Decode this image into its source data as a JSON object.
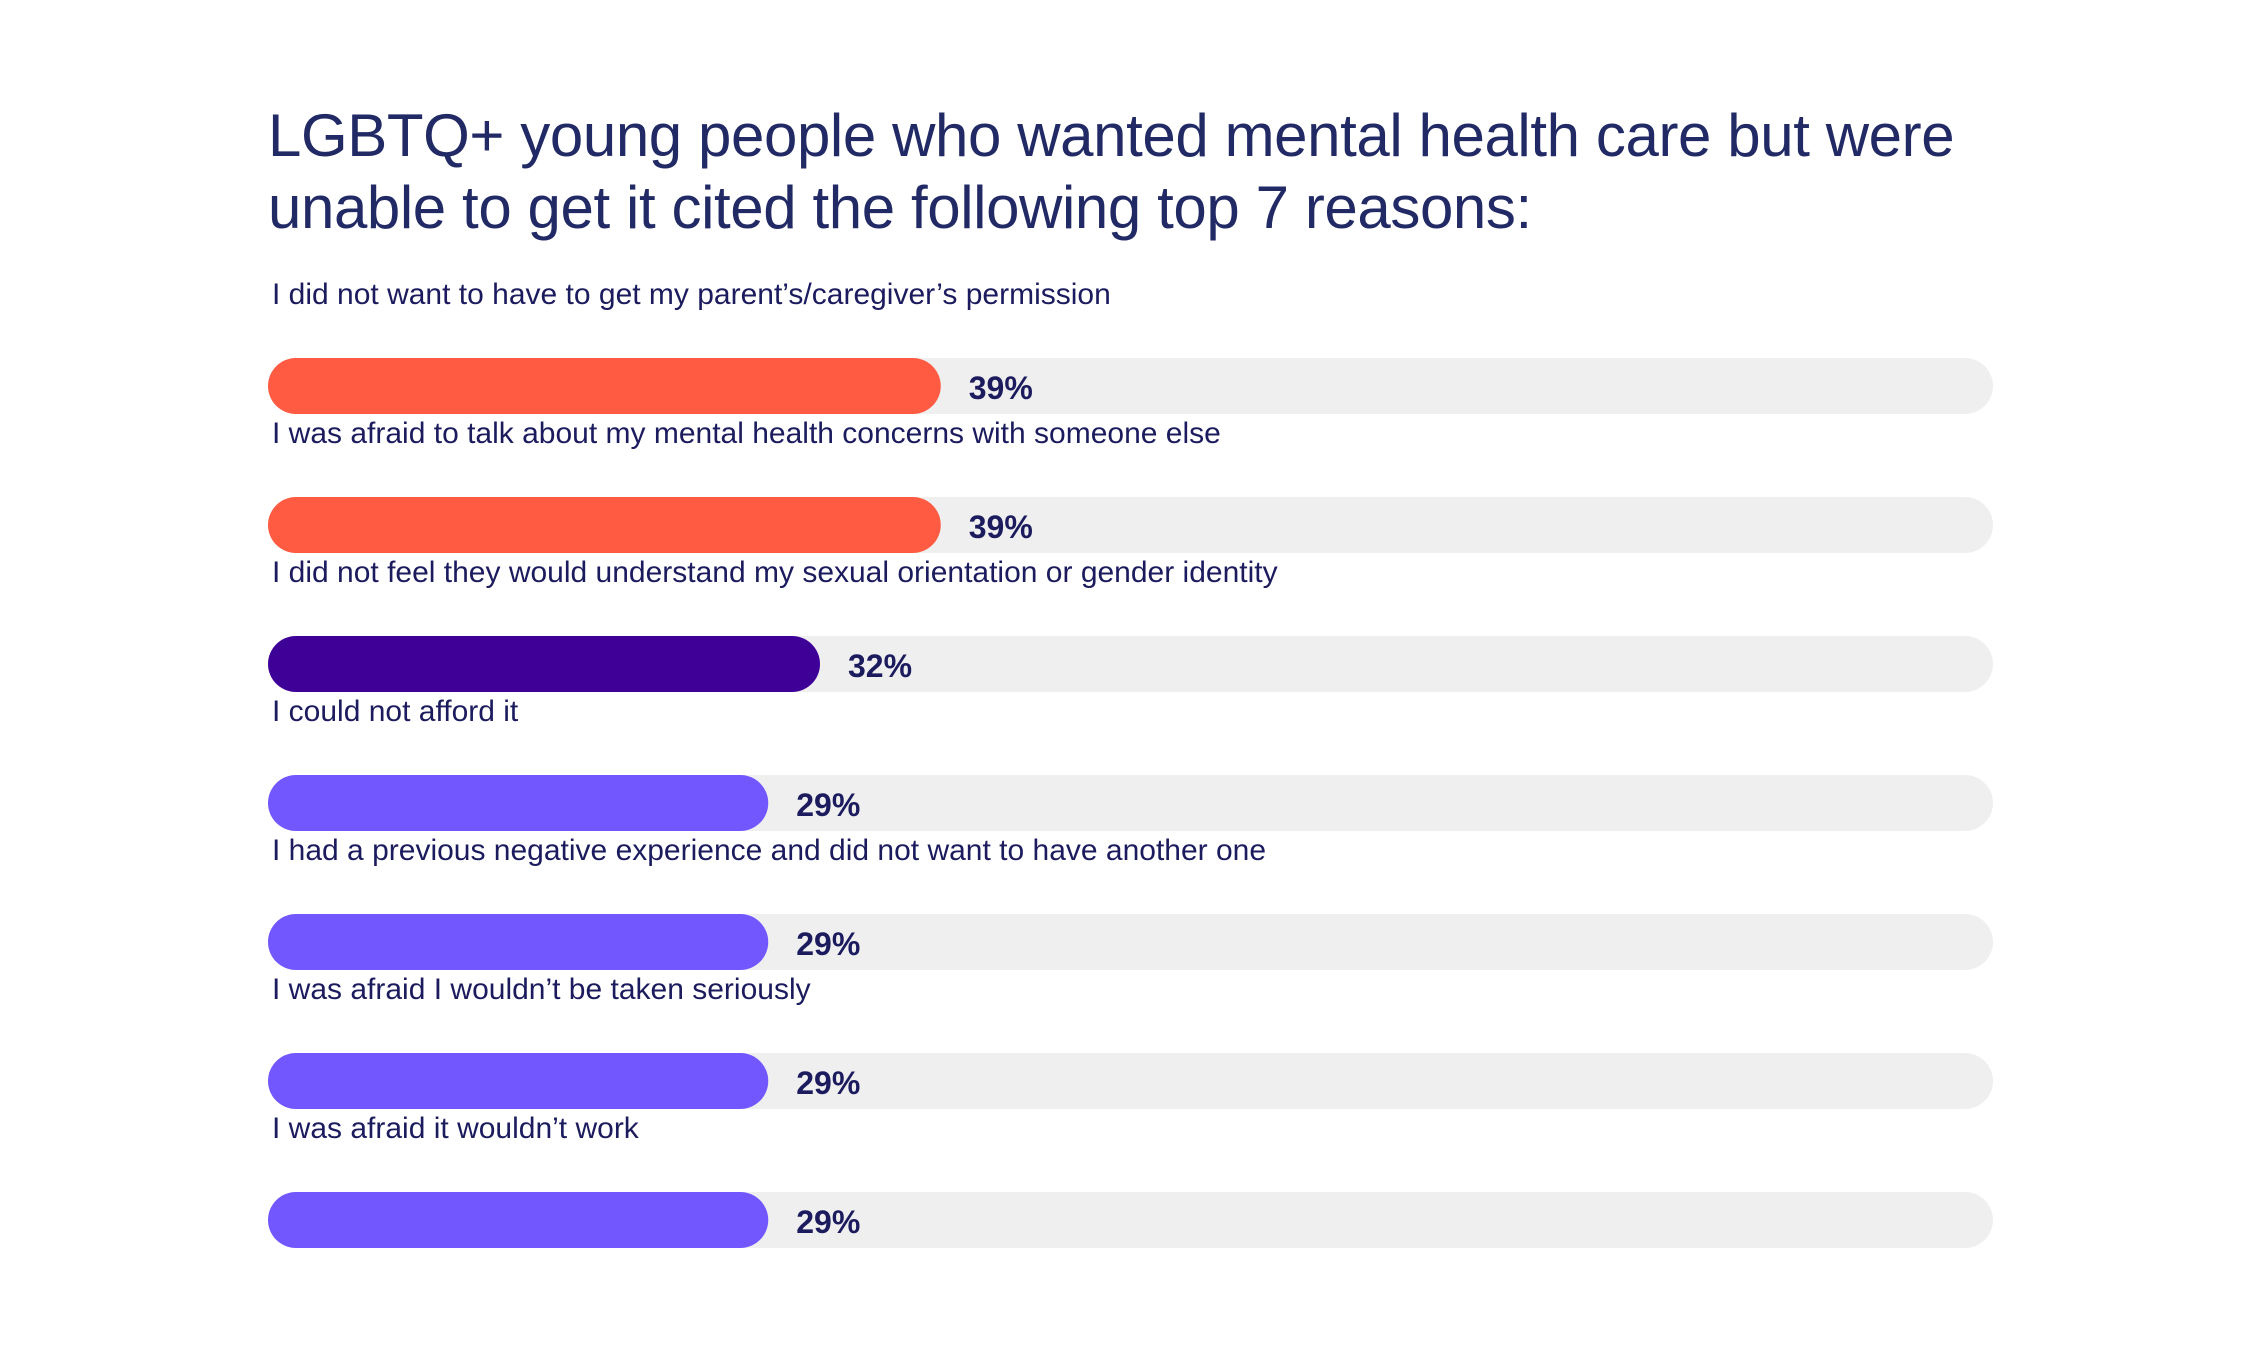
{
  "chart_data": {
    "type": "bar",
    "orientation": "horizontal",
    "title_lines": [
      "LGBTQ+ young people who wanted mental health care but were",
      "unable to get it cited the following top 7 reasons:"
    ],
    "categories": [
      "I did not want to have to get my parent’s/caregiver’s permission",
      "I was afraid to talk about my mental health concerns with someone else",
      "I did not feel they would understand my sexual orientation or gender identity",
      "I could not afford it",
      "I had a previous negative experience and did not want to have another one",
      "I was afraid I wouldn’t be taken seriously",
      "I was afraid it wouldn’t work"
    ],
    "values": [
      39,
      39,
      32,
      29,
      29,
      29,
      29
    ],
    "value_labels": [
      "39%",
      "39%",
      "32%",
      "29%",
      "29%",
      "29%",
      "29%"
    ],
    "xlim": [
      0,
      100
    ],
    "bar_colors": [
      "#ff5a42",
      "#ff5a42",
      "#3f0097",
      "#7257ff",
      "#7257ff",
      "#7257ff",
      "#7257ff"
    ],
    "track_color": "#efefef",
    "text_color": "#1b1b5e",
    "grid": false,
    "legend": "none"
  }
}
